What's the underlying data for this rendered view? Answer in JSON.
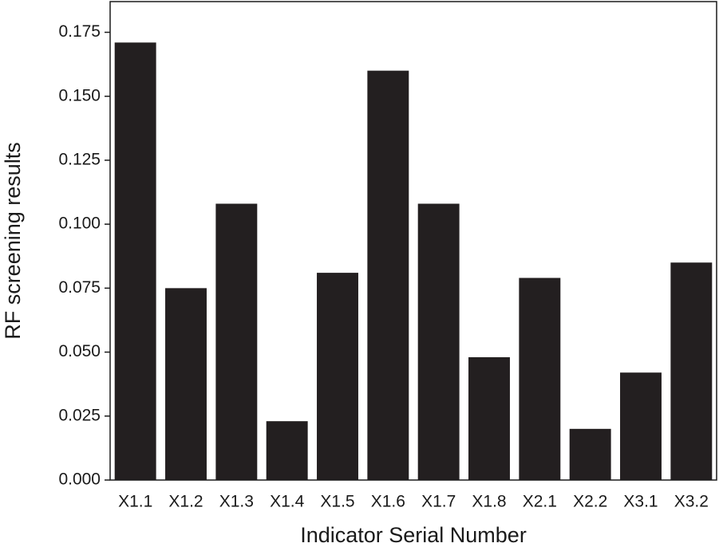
{
  "chart_data": {
    "type": "bar",
    "x_label": "Indicator Serial Number",
    "y_label": "RF screening results",
    "categories": [
      "X1.1",
      "X1.2",
      "X1.3",
      "X1.4",
      "X1.5",
      "X1.6",
      "X1.7",
      "X1.8",
      "X2.1",
      "X2.2",
      "X3.1",
      "X3.2"
    ],
    "values": [
      0.171,
      0.075,
      0.108,
      0.023,
      0.081,
      0.16,
      0.108,
      0.048,
      0.079,
      0.02,
      0.042,
      0.085
    ],
    "color": "#231f20",
    "ylim": [
      0,
      0.187
    ],
    "yticks": [
      {
        "value": 0,
        "label": "0.000"
      },
      {
        "value": 0.025,
        "label": "0.025"
      },
      {
        "value": 0.05,
        "label": "0.050"
      },
      {
        "value": 0.075,
        "label": "0.075"
      },
      {
        "value": 0.1,
        "label": "0.100"
      },
      {
        "value": 0.125,
        "label": "0.125"
      },
      {
        "value": 0.15,
        "label": "0.150"
      },
      {
        "value": 0.175,
        "label": "0.175"
      }
    ],
    "grid": false
  }
}
